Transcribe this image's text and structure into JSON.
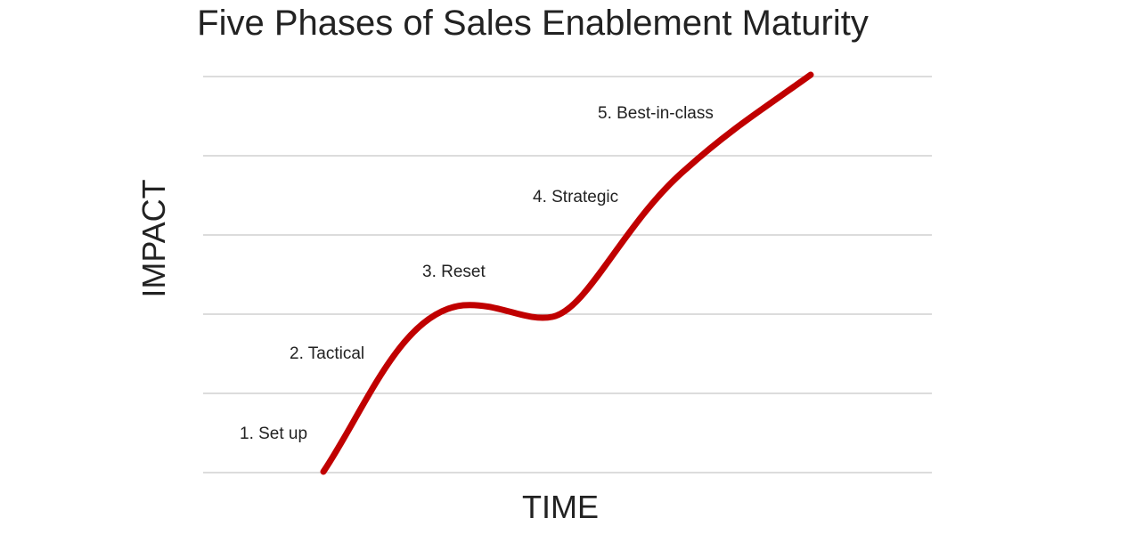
{
  "chart_data": {
    "type": "line",
    "title": "Five Phases of Sales Enablement Maturity",
    "xlabel": "TIME",
    "ylabel": "IMPACT",
    "grid": true,
    "series_color": "#c00000",
    "gridline_count": 6,
    "phases": [
      {
        "label": "1. Set up"
      },
      {
        "label": "2. Tactical"
      },
      {
        "label": "3. Reset"
      },
      {
        "label": "4. Strategic"
      },
      {
        "label": "5. Best-in-class"
      }
    ]
  }
}
